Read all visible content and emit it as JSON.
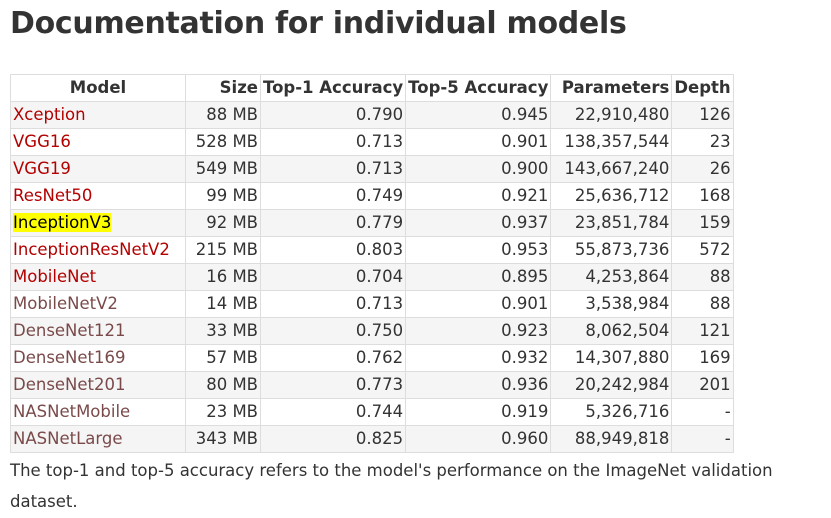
{
  "title": "Documentation for individual models",
  "table": {
    "headers": {
      "model": "Model",
      "size": "Size",
      "top1": "Top-1 Accuracy",
      "top5": "Top-5 Accuracy",
      "parameters": "Parameters",
      "depth": "Depth"
    },
    "rows": [
      {
        "model": "Xception",
        "size": "88 MB",
        "top1": "0.790",
        "top5": "0.945",
        "parameters": "22,910,480",
        "depth": "126",
        "link_style": "link"
      },
      {
        "model": "VGG16",
        "size": "528 MB",
        "top1": "0.713",
        "top5": "0.901",
        "parameters": "138,357,544",
        "depth": "23",
        "link_style": "link"
      },
      {
        "model": "VGG19",
        "size": "549 MB",
        "top1": "0.713",
        "top5": "0.900",
        "parameters": "143,667,240",
        "depth": "26",
        "link_style": "link"
      },
      {
        "model": "ResNet50",
        "size": "99 MB",
        "top1": "0.749",
        "top5": "0.921",
        "parameters": "25,636,712",
        "depth": "168",
        "link_style": "link"
      },
      {
        "model": "InceptionV3",
        "size": "92 MB",
        "top1": "0.779",
        "top5": "0.937",
        "parameters": "23,851,784",
        "depth": "159",
        "link_style": "highlight"
      },
      {
        "model": "InceptionResNetV2",
        "size": "215 MB",
        "top1": "0.803",
        "top5": "0.953",
        "parameters": "55,873,736",
        "depth": "572",
        "link_style": "link"
      },
      {
        "model": "MobileNet",
        "size": "16 MB",
        "top1": "0.704",
        "top5": "0.895",
        "parameters": "4,253,864",
        "depth": "88",
        "link_style": "link"
      },
      {
        "model": "MobileNetV2",
        "size": "14 MB",
        "top1": "0.713",
        "top5": "0.901",
        "parameters": "3,538,984",
        "depth": "88",
        "link_style": "visited"
      },
      {
        "model": "DenseNet121",
        "size": "33 MB",
        "top1": "0.750",
        "top5": "0.923",
        "parameters": "8,062,504",
        "depth": "121",
        "link_style": "visited"
      },
      {
        "model": "DenseNet169",
        "size": "57 MB",
        "top1": "0.762",
        "top5": "0.932",
        "parameters": "14,307,880",
        "depth": "169",
        "link_style": "visited"
      },
      {
        "model": "DenseNet201",
        "size": "80 MB",
        "top1": "0.773",
        "top5": "0.936",
        "parameters": "20,242,984",
        "depth": "201",
        "link_style": "visited"
      },
      {
        "model": "NASNetMobile",
        "size": "23 MB",
        "top1": "0.744",
        "top5": "0.919",
        "parameters": "5,326,716",
        "depth": "-",
        "link_style": "visited"
      },
      {
        "model": "NASNetLarge",
        "size": "343 MB",
        "top1": "0.825",
        "top5": "0.960",
        "parameters": "88,949,818",
        "depth": "-",
        "link_style": "visited"
      }
    ]
  },
  "footnote": "The top-1 and top-5 accuracy refers to the model's performance on the ImageNet validation dataset.",
  "colors": {
    "link": "#b30000",
    "visited_link": "#7a4a4a",
    "highlight": "#ffff00",
    "text": "#333333",
    "border": "#dddddd"
  }
}
